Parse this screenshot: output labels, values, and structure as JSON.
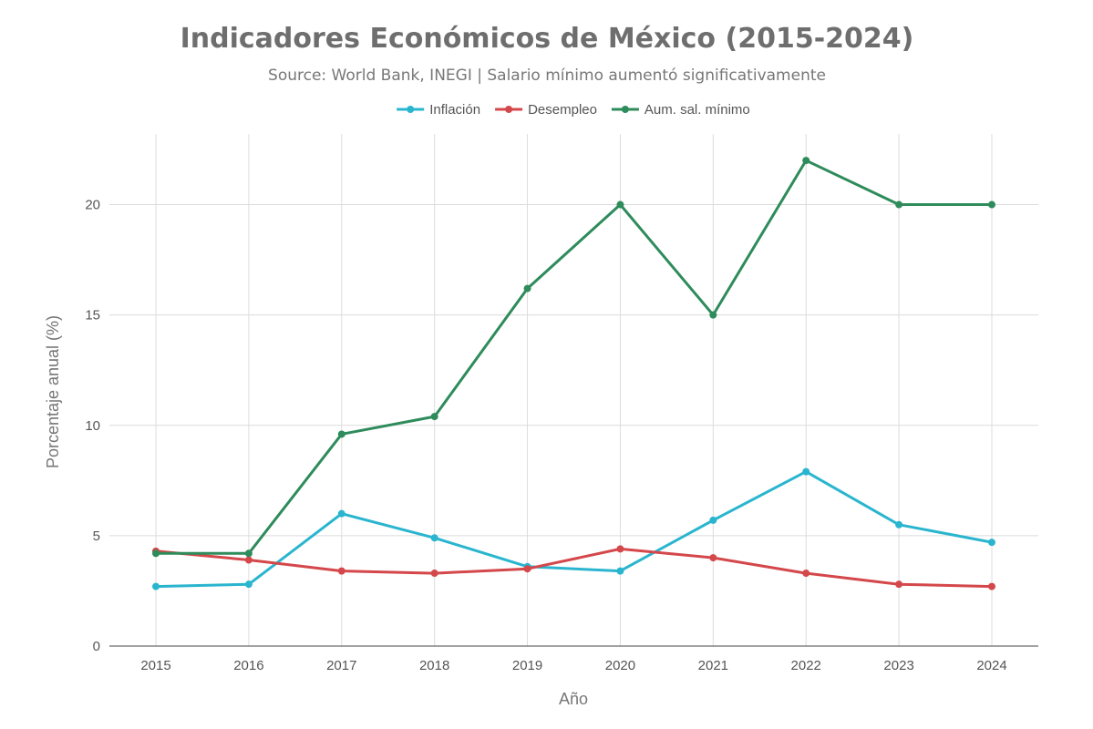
{
  "chart_data": {
    "type": "line",
    "title": "Indicadores Económicos de México (2015-2024)",
    "subtitle": "Source: World Bank, INEGI | Salario mínimo aumentó significativamente",
    "xlabel": "Año",
    "ylabel": "Porcentaje anual (%)",
    "x": [
      "2015",
      "2016",
      "2017",
      "2018",
      "2019",
      "2020",
      "2021",
      "2022",
      "2023",
      "2024"
    ],
    "ylim": [
      0,
      23.2
    ],
    "yticks": [
      "0",
      "5",
      "10",
      "15",
      "20"
    ],
    "grid": true,
    "legend_position": "top-center",
    "series": [
      {
        "name": "Inflación",
        "color": "#2ab5cf",
        "values": [
          2.7,
          2.8,
          6.0,
          4.9,
          3.6,
          3.4,
          5.7,
          7.9,
          5.5,
          4.7
        ]
      },
      {
        "name": "Desempleo",
        "color": "#d4474a",
        "values": [
          4.3,
          3.9,
          3.4,
          3.3,
          3.5,
          4.4,
          4.0,
          3.3,
          2.8,
          2.7
        ]
      },
      {
        "name": "Aum. sal. mínimo",
        "color": "#2e8b5b",
        "values": [
          4.2,
          4.2,
          9.6,
          10.4,
          16.2,
          20.0,
          15.0,
          22.0,
          20.0,
          20.0
        ]
      }
    ]
  }
}
